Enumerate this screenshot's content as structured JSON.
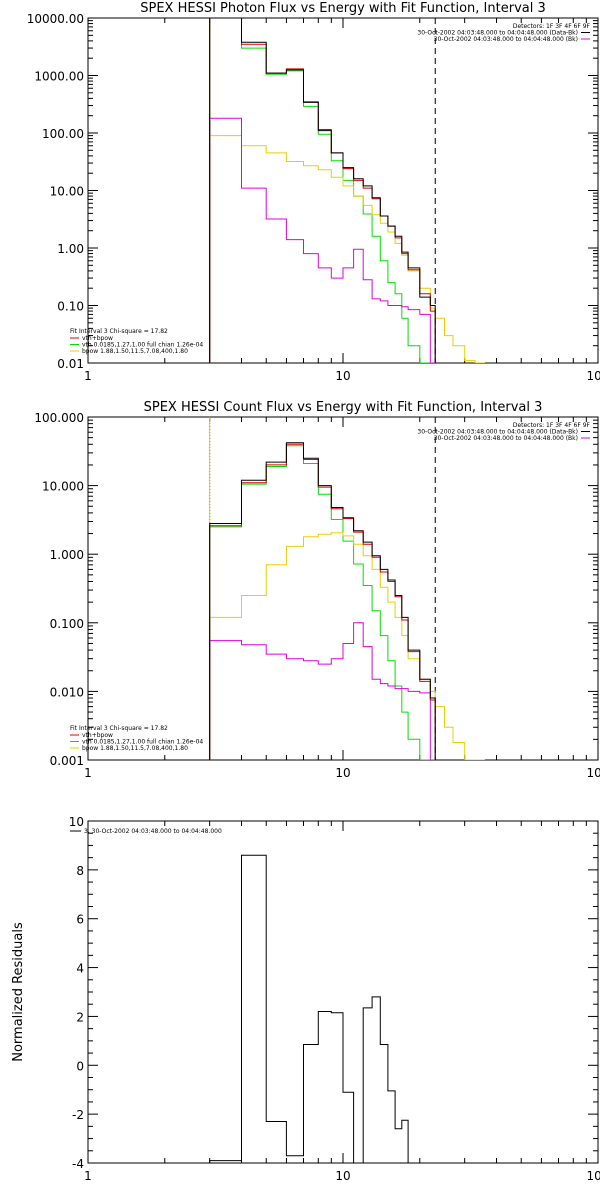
{
  "chart_data": [
    {
      "type": "line",
      "title": "SPEX HESSI Photon Flux vs Energy with Fit Function, Interval 3",
      "xscale": "log",
      "yscale": "log",
      "xlim": [
        1,
        100
      ],
      "ylim": [
        0.01,
        10000
      ],
      "xticks": [
        1,
        10,
        100
      ],
      "xtick_labels": [
        "1",
        "10",
        "100"
      ],
      "yticks": [
        0.01,
        0.1,
        1,
        10,
        100,
        1000,
        10000
      ],
      "ytick_labels": [
        "0.01",
        "0.10",
        "1.00",
        "10.00",
        "100.00",
        "1000.00",
        "10000.00"
      ],
      "colors": {
        "data": "#000000",
        "sum": "#e00000",
        "vth": "#00e000",
        "bpow": "#e8d000",
        "bk": "#e000e0"
      },
      "vlines": [
        {
          "x": 3,
          "style": "dotted"
        },
        {
          "x": 3,
          "style": "solid",
          "color": "#e8d000"
        },
        {
          "x": 23,
          "style": "dashed"
        }
      ],
      "edges": [
        3,
        4,
        5,
        6,
        7,
        8,
        9,
        10,
        11,
        12,
        13,
        14,
        15,
        16,
        17,
        18,
        20,
        22,
        23,
        25,
        27,
        30,
        33,
        36,
        40
      ],
      "series": [
        {
          "color_key": "data",
          "values": [
            10000,
            3800,
            1100,
            1250,
            340,
            110,
            45,
            25,
            16,
            12,
            7.5,
            3.6,
            2.4,
            1.6,
            0.85,
            0.45,
            0.14,
            0.1,
            null,
            null,
            null,
            null,
            null,
            null
          ]
        },
        {
          "color_key": "sum",
          "values": [
            10000,
            3500,
            1100,
            1300,
            350,
            115,
            45,
            24,
            15,
            11,
            7.2,
            3.6,
            2.4,
            1.5,
            0.8,
            0.42,
            0.16,
            0.08,
            null,
            null,
            null,
            null,
            null,
            null
          ]
        },
        {
          "color_key": "vth",
          "values": [
            10000,
            3000,
            1050,
            1200,
            290,
            95,
            33,
            15,
            8,
            3.9,
            1.6,
            0.6,
            0.25,
            0.16,
            0.06,
            0.02,
            0.009,
            null,
            null,
            null,
            null,
            null,
            null,
            null
          ]
        },
        {
          "color_key": "bpow",
          "values": [
            90,
            60,
            45,
            32,
            27,
            23,
            17,
            12,
            8,
            5.5,
            3.8,
            2.7,
            1.9,
            1.2,
            0.75,
            0.4,
            0.2,
            0.09,
            0.06,
            0.03,
            0.02,
            0.011,
            0.009,
            null
          ]
        },
        {
          "color_key": "bk",
          "values": [
            180,
            11,
            3.2,
            1.4,
            0.8,
            0.45,
            0.3,
            0.45,
            0.95,
            0.28,
            0.13,
            0.12,
            0.1,
            0.1,
            0.095,
            0.085,
            0.07,
            0.009,
            null,
            null,
            null,
            null,
            null,
            null
          ]
        }
      ],
      "annotation": {
        "lines": [
          "Detectors: 1F 3F 4F 6F 9F",
          "30-Oct-2002 04:03:48.000 to 04:04:48.000 (Data-Bk)",
          "30-Oct-2002 04:03:48.000 to 04:04:48.000 (Bk)"
        ],
        "legend_colors": [
          "data",
          "bk"
        ]
      },
      "fit_legend": {
        "header": "Fit Interval 3   Chi-square = 17.82",
        "entries": [
          {
            "color_key": "sum",
            "label": "vth+bpow"
          },
          {
            "color_key": "vth",
            "label": "vth 0.0185,1.27,1.00  full chian 1.26e-04"
          },
          {
            "color_key": "bpow",
            "label": "bpow 1.88,1.50,11.5,7.08,400,1.80"
          }
        ]
      }
    },
    {
      "type": "line",
      "title": "SPEX HESSI Count Flux vs Energy with Fit Function, Interval 3",
      "xscale": "log",
      "yscale": "log",
      "xlim": [
        1,
        100
      ],
      "ylim": [
        0.001,
        100
      ],
      "xticks": [
        1,
        10,
        100
      ],
      "xtick_labels": [
        "1",
        "10",
        "100"
      ],
      "yticks": [
        0.001,
        0.01,
        0.1,
        1,
        10,
        100
      ],
      "ytick_labels": [
        "0.001",
        "0.010",
        "0.100",
        "1.000",
        "10.000",
        "100.000"
      ],
      "colors": {
        "data": "#000000",
        "sum": "#e00000",
        "vth": "#00e000",
        "bpow": "#e8d000",
        "bk": "#e000e0"
      },
      "vlines": [
        {
          "x": 3,
          "style": "dotted"
        },
        {
          "x": 3,
          "style": "solid",
          "color": "#e8d000"
        },
        {
          "x": 23,
          "style": "dashed"
        }
      ],
      "edges": [
        3,
        4,
        5,
        6,
        7,
        8,
        9,
        10,
        11,
        12,
        13,
        14,
        15,
        16,
        17,
        18,
        20,
        22,
        23,
        25,
        27,
        30,
        33,
        36,
        40
      ],
      "series": [
        {
          "color_key": "data",
          "values": [
            2.8,
            12,
            22,
            42,
            25,
            10,
            4.8,
            3.4,
            2.2,
            1.5,
            0.95,
            0.6,
            0.42,
            0.25,
            0.12,
            0.04,
            0.015,
            0.008,
            null,
            null,
            null,
            null,
            null,
            null
          ]
        },
        {
          "color_key": "sum",
          "values": [
            2.6,
            11,
            20,
            40,
            24,
            9.5,
            4.6,
            3.3,
            2.1,
            1.4,
            0.9,
            0.55,
            0.4,
            0.24,
            0.11,
            0.038,
            0.014,
            0.0075,
            null,
            null,
            null,
            null,
            null,
            null
          ]
        },
        {
          "color_key": "vth",
          "values": [
            2.5,
            10.5,
            19,
            38,
            21,
            7.5,
            3.2,
            1.55,
            0.72,
            0.35,
            0.15,
            0.065,
            0.028,
            0.012,
            0.005,
            0.002,
            0.0008,
            null,
            null,
            null,
            null,
            null,
            null,
            null
          ]
        },
        {
          "color_key": "bpow",
          "values": [
            0.12,
            0.25,
            0.7,
            1.3,
            1.8,
            1.95,
            2.05,
            1.85,
            1.4,
            0.95,
            0.6,
            0.33,
            0.2,
            0.12,
            0.065,
            0.03,
            0.015,
            0.01,
            0.006,
            0.003,
            0.0018,
            0.001,
            0.0008,
            null
          ]
        },
        {
          "color_key": "bk",
          "values": [
            0.055,
            0.048,
            0.035,
            0.03,
            0.028,
            0.025,
            0.03,
            0.05,
            0.1,
            0.045,
            0.015,
            0.013,
            0.012,
            0.011,
            0.011,
            0.01,
            0.0095,
            0.0008,
            null,
            null,
            null,
            null,
            null,
            null
          ]
        }
      ],
      "annotation": {
        "lines": [
          "Detectors: 1F 3F 4F 6F 9F",
          "30-Oct-2002 04:03:48.000 to 04:04:48.000 (Data-Bk)",
          "30-Oct-2002 04:03:48.000 to 04:04:48.000 (Bk)"
        ],
        "legend_colors": [
          "data",
          "bk"
        ]
      },
      "fit_legend": {
        "header": "Fit Interval 3   Chi-square = 17.82",
        "entries": [
          {
            "color_key": "sum",
            "label": "vth+bpow"
          },
          {
            "color_key": "vth",
            "label": "vth 0.0185,1.27,1.00  full chian 1.26e-04"
          },
          {
            "color_key": "bpow",
            "label": "bpow 1.88,1.50,11.5,7.08,400,1.80"
          }
        ]
      }
    },
    {
      "type": "line",
      "title": "",
      "ylabel": "Normalized Residuals",
      "xscale": "log",
      "yscale": "linear",
      "xlim": [
        1,
        100
      ],
      "ylim": [
        -4,
        10
      ],
      "xticks": [
        1,
        10,
        100
      ],
      "xtick_labels": [
        "1",
        "10",
        "100"
      ],
      "yticks": [
        -4,
        -2,
        0,
        2,
        4,
        6,
        8,
        10
      ],
      "ytick_labels": [
        "-4",
        "-2",
        "0",
        "2",
        "4",
        "6",
        "8",
        "10"
      ],
      "colors": {
        "data": "#000000"
      },
      "edges": [
        3,
        4,
        5,
        6,
        7,
        8,
        9,
        10,
        11,
        12,
        13,
        14,
        15,
        16,
        17,
        18,
        20,
        22,
        23
      ],
      "series": [
        {
          "color_key": "data",
          "values": [
            -3.9,
            8.6,
            -2.3,
            -3.7,
            0.85,
            2.2,
            2.15,
            -1.1,
            -4.5,
            2.35,
            2.8,
            0.85,
            -1.05,
            -2.6,
            -2.25,
            -4.5,
            null,
            null
          ]
        }
      ],
      "legend": {
        "label": "3, 30-Oct-2002 04:03:48.000 to 04:04:48.000"
      }
    }
  ]
}
